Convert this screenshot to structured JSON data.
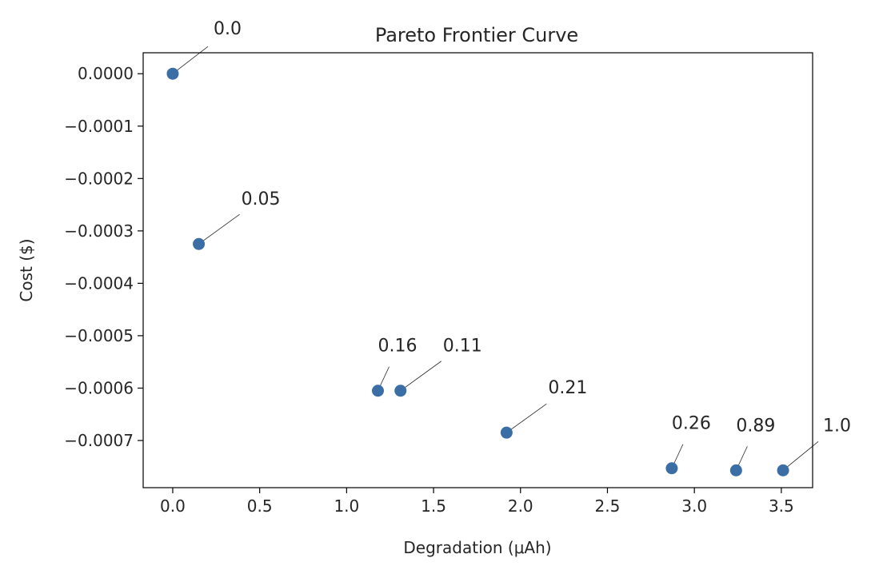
{
  "chart_data": {
    "type": "scatter",
    "title": "Pareto Frontier Curve",
    "xlabel": "Degradation (μAh)",
    "ylabel": "Cost ($)",
    "xlim": [
      -0.17,
      3.68
    ],
    "ylim": [
      -0.00079,
      4e-05
    ],
    "xticks": [
      0.0,
      0.5,
      1.0,
      1.5,
      2.0,
      2.5,
      3.0,
      3.5
    ],
    "xtick_labels": [
      "0.0",
      "0.5",
      "1.0",
      "1.5",
      "2.0",
      "2.5",
      "3.0",
      "3.5"
    ],
    "yticks": [
      0.0,
      -0.0001,
      -0.0002,
      -0.0003,
      -0.0004,
      -0.0005,
      -0.0006,
      -0.0007
    ],
    "ytick_labels": [
      "0.0000",
      "−0.0001",
      "−0.0002",
      "−0.0003",
      "−0.0004",
      "−0.0005",
      "−0.0006",
      "−0.0007"
    ],
    "grid": false,
    "marker_color": "#3a6ea5",
    "points": [
      {
        "x": 0.0,
        "y": 0.0,
        "label": "0.0"
      },
      {
        "x": 0.15,
        "y": -0.000325,
        "label": "0.05"
      },
      {
        "x": 1.18,
        "y": -0.000605,
        "label": "0.16"
      },
      {
        "x": 1.31,
        "y": -0.000605,
        "label": "0.11"
      },
      {
        "x": 1.92,
        "y": -0.000685,
        "label": "0.21"
      },
      {
        "x": 2.87,
        "y": -0.000753,
        "label": "0.26"
      },
      {
        "x": 3.24,
        "y": -0.000757,
        "label": "0.89"
      },
      {
        "x": 3.51,
        "y": -0.000757,
        "label": "1.0"
      }
    ]
  }
}
